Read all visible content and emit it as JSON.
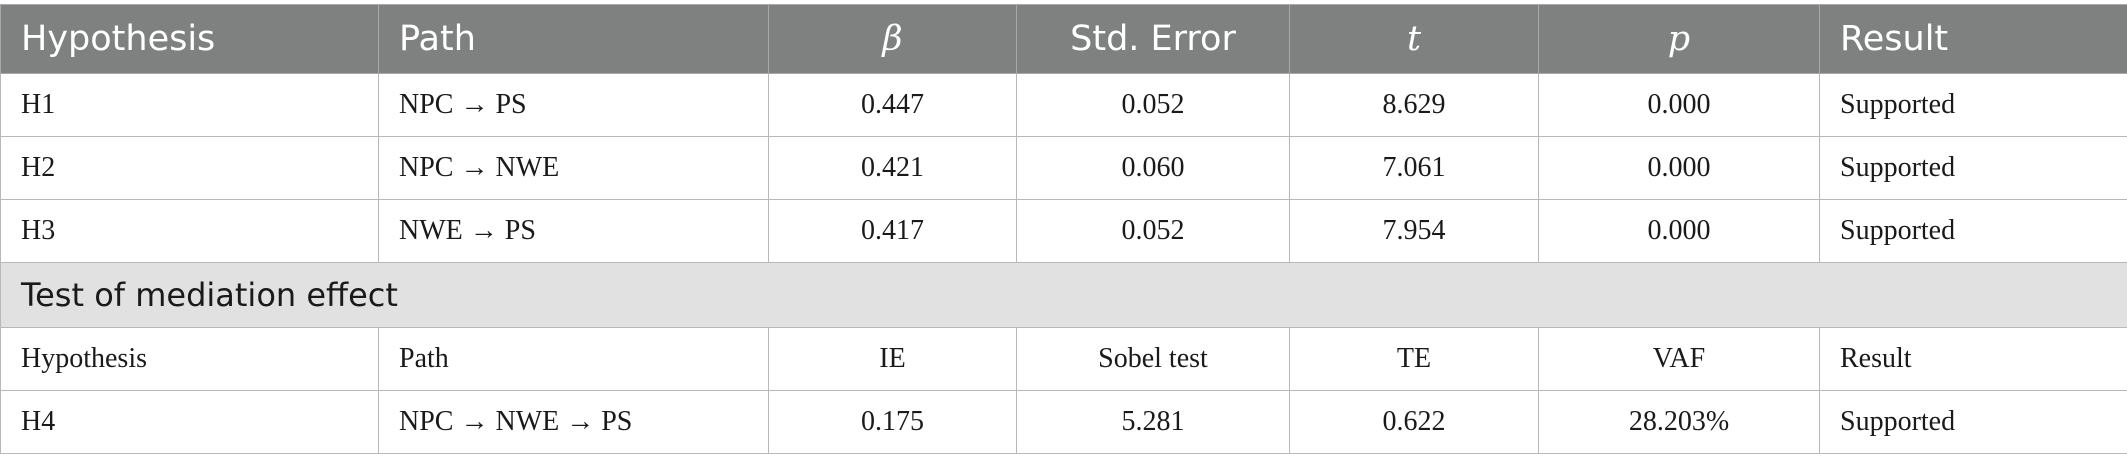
{
  "table": {
    "headers": [
      "Hypothesis",
      "Path",
      "β",
      "Std. Error",
      "t",
      "p",
      "Result"
    ],
    "rows": [
      [
        "H1",
        "NPC → PS",
        "0.447",
        "0.052",
        "8.629",
        "0.000",
        "Supported"
      ],
      [
        "H2",
        "NPC → NWE",
        "0.421",
        "0.060",
        "7.061",
        "0.000",
        "Supported"
      ],
      [
        "H3",
        "NWE → PS",
        "0.417",
        "0.052",
        "7.954",
        "0.000",
        "Supported"
      ]
    ],
    "section_title": "Test of mediation effect",
    "mediation_headers": [
      "Hypothesis",
      "Path",
      "IE",
      "Sobel test",
      "TE",
      "VAF",
      "Result"
    ],
    "mediation_rows": [
      [
        "H4",
        "NPC → NWE → PS",
        "0.175",
        "5.281",
        "0.622",
        "28.203%",
        "Supported"
      ]
    ]
  }
}
